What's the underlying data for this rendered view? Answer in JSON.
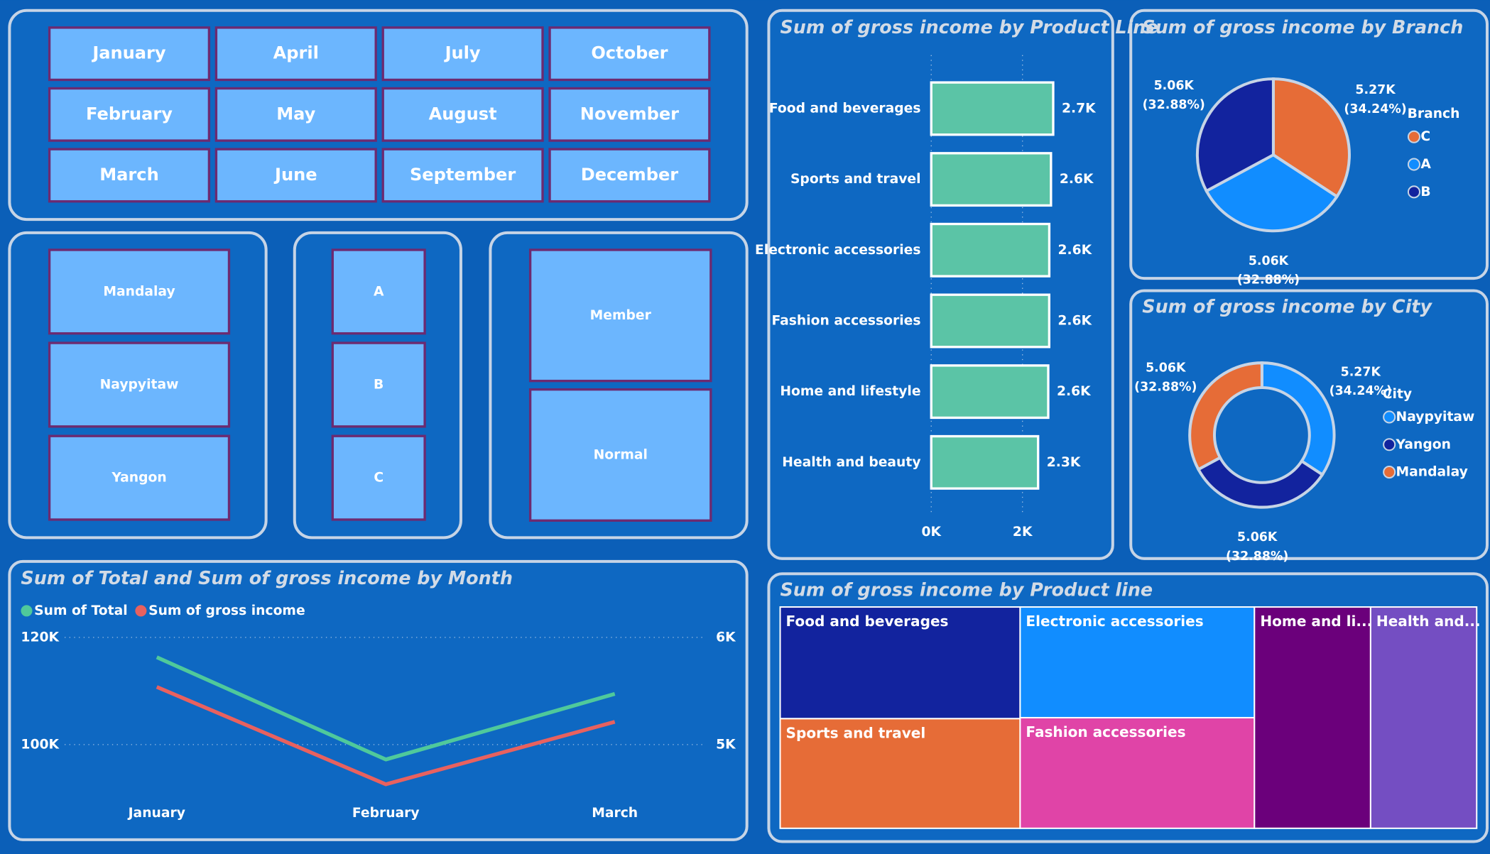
{
  "slicers": {
    "months": [
      "January",
      "February",
      "March",
      "April",
      "May",
      "June",
      "July",
      "August",
      "September",
      "October",
      "November",
      "December"
    ],
    "cities": [
      "Mandalay",
      "Naypyitaw",
      "Yangon"
    ],
    "branches": [
      "A",
      "B",
      "C"
    ],
    "customer_types": [
      "Member",
      "Normal"
    ]
  },
  "chart_data": [
    {
      "type": "hbar",
      "title": "Sum of gross income by Product Line",
      "categories": [
        "Food and beverages",
        "Sports and travel",
        "Electronic accessories",
        "Fashion accessories",
        "Home and lifestyle",
        "Health and beauty"
      ],
      "values": [
        2673.56,
        2624.9,
        2587.5,
        2585.99,
        2564.85,
        2342.56
      ],
      "value_labels": [
        "2.7K",
        "2.6K",
        "2.6K",
        "2.6K",
        "2.6K",
        "2.3K"
      ],
      "color": "#5bc4a6",
      "xlim": [
        0,
        4000
      ],
      "xticks": [
        {
          "value": 0,
          "label": "0K"
        },
        {
          "value": 2000,
          "label": "2K"
        }
      ],
      "grid": true
    },
    {
      "type": "pie",
      "title": "Sum of gross income by Branch",
      "legend_title": "Branch",
      "categories": [
        "C",
        "A",
        "B"
      ],
      "values": [
        5265.18,
        5057.16,
        5057.03
      ],
      "value_labels": [
        "5.27K",
        "5.06K",
        "5.06K"
      ],
      "percent_labels": [
        "(34.24%)",
        "(32.88%)",
        "(32.88%)"
      ],
      "colors": [
        "#e66c37",
        "#118dff",
        "#12239e"
      ]
    },
    {
      "type": "donut",
      "title": "Sum of gross income by City",
      "legend_title": "City",
      "categories": [
        "Naypyitaw",
        "Yangon",
        "Mandalay"
      ],
      "values": [
        5265.18,
        5057.03,
        5057.53
      ],
      "value_labels": [
        "5.27K",
        "5.06K",
        "5.06K"
      ],
      "percent_labels": [
        "(34.24%)",
        "(32.88%)",
        "(32.88%)"
      ],
      "colors": [
        "#118dff",
        "#12239e",
        "#e66c37"
      ]
    },
    {
      "type": "line",
      "title": "Sum of Total and Sum of gross income by Month",
      "categories": [
        "January",
        "February",
        "March"
      ],
      "series": [
        {
          "name": "Sum of Total",
          "color": "#4fc99b",
          "values": [
            116291.87,
            97219.37,
            109455.51
          ]
        },
        {
          "name": "Sum of gross income",
          "color": "#e8615f",
          "axis": "y2",
          "values": [
            5537.71,
            4629.49,
            5212.17
          ]
        }
      ],
      "ylim": [
        92000,
        120000
      ],
      "yticks": [
        {
          "value": 100000,
          "label": "100K"
        },
        {
          "value": 120000,
          "label": "120K"
        }
      ],
      "y2lim": [
        4600,
        6000
      ],
      "y2ticks": [
        {
          "value": 5000,
          "label": "5K"
        },
        {
          "value": 6000,
          "label": "6K"
        }
      ],
      "grid": true
    },
    {
      "type": "treemap",
      "title": "Sum of gross income by Product line",
      "categories": [
        "Food and beverages",
        "Sports and travel",
        "Electronic accessories",
        "Fashion accessories",
        "Home and li...",
        "Health and..."
      ],
      "values": [
        2673.56,
        2624.9,
        2587.5,
        2585.99,
        2564.85,
        2342.56
      ],
      "colors": [
        "#12239e",
        "#e66c37",
        "#118dff",
        "#e044a7",
        "#6b007b",
        "#744ec2"
      ]
    }
  ]
}
